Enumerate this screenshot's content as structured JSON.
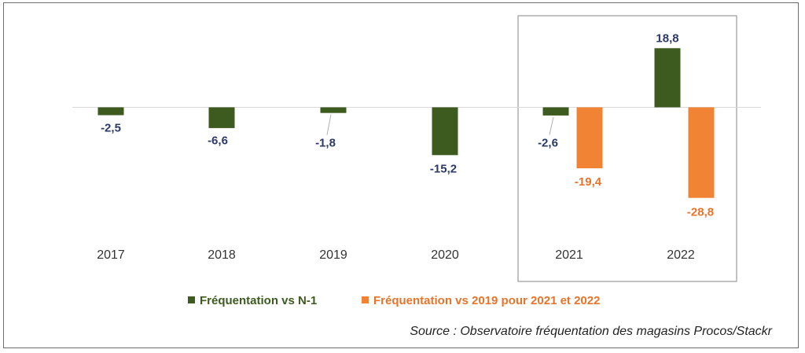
{
  "chart_data": {
    "type": "bar",
    "categories": [
      "2017",
      "2018",
      "2019",
      "2020",
      "2021",
      "2022"
    ],
    "series": [
      {
        "name": "Fréquentation vs N-1",
        "values": [
          -2.5,
          -6.6,
          -1.8,
          -15.2,
          -2.6,
          18.8
        ],
        "labels": [
          "-2,5",
          "-6,6",
          "-1,8",
          "-15,2",
          "-2,6",
          "18,8"
        ],
        "color": "#3d5a1f"
      },
      {
        "name": "Fréquentation vs 2019 pour 2021 et 2022",
        "values": [
          null,
          null,
          null,
          null,
          -19.4,
          -28.8
        ],
        "labels": [
          "",
          "",
          "",
          "",
          "-19,4",
          "-28,8"
        ],
        "color": "#f08334"
      }
    ],
    "highlight_categories": [
      "2021",
      "2022"
    ],
    "grid": false,
    "legend_position": "bottom"
  },
  "source_text": "Source : Observatoire fréquentation des magasins Procos/Stackr",
  "colors": {
    "label_dark": "#2b3a67",
    "label_orange": "#e8732a",
    "axis": "#d8d8d8",
    "highlight_box": "#9a9a9a"
  }
}
